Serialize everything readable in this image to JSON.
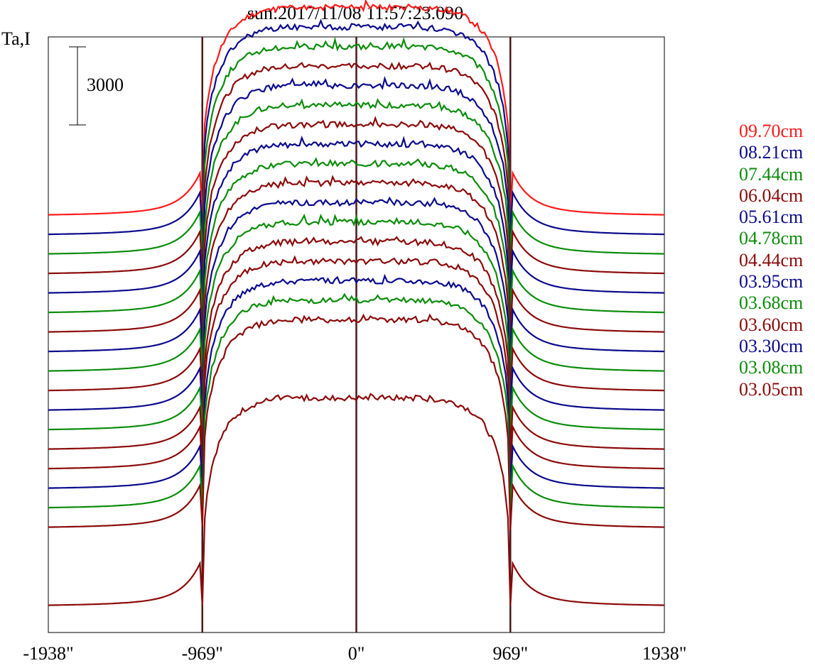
{
  "title": "sun:2017/11/08 11:57:23.090",
  "colors": {
    "frame": "#000000",
    "limb_lines": "#4a1a1a",
    "background": "#ffffff"
  },
  "chart_data": {
    "type": "line",
    "title": "sun:2017/11/08 11:57:23.090",
    "xlabel": "",
    "ylabel": "Ta,I",
    "x_ticks": [
      {
        "value": -1938,
        "label": "-1938\""
      },
      {
        "value": -969,
        "label": "-969\""
      },
      {
        "value": 0,
        "label": "0\""
      },
      {
        "value": 969,
        "label": "969\""
      },
      {
        "value": 1938,
        "label": "1938\""
      }
    ],
    "xlim": [
      -1938,
      1938
    ],
    "vertical_lines": [
      -969,
      0,
      969
    ],
    "scale_bar": {
      "label": "3000",
      "value": 3000
    },
    "grid": false,
    "legend_position": "right",
    "profile_shape": {
      "baseline": 0,
      "disk_plateau": 8000,
      "limb_radius": 969
    },
    "series": [
      {
        "name": "09.70cm",
        "color": "#ff1a1a",
        "offset": 15000
      },
      {
        "name": "08.21cm",
        "color": "#0a0a8c",
        "offset": 14250
      },
      {
        "name": "07.44cm",
        "color": "#0a8c0a",
        "offset": 13500
      },
      {
        "name": "06.04cm",
        "color": "#8b0a0a",
        "offset": 12750
      },
      {
        "name": "05.61cm",
        "color": "#0a0a8c",
        "offset": 12000
      },
      {
        "name": "04.78cm",
        "color": "#0a8c0a",
        "offset": 11250
      },
      {
        "name": "04.44cm",
        "color": "#8b0a0a",
        "offset": 10500
      },
      {
        "name": "03.95cm",
        "color": "#0a0a8c",
        "offset": 9750
      },
      {
        "name": "03.68cm",
        "color": "#0a8c0a",
        "offset": 9000
      },
      {
        "name": "03.60cm",
        "color": "#8b0a0a",
        "offset": 8250
      },
      {
        "name": "03.30cm",
        "color": "#0a0a8c",
        "offset": 7500
      },
      {
        "name": "03.08cm",
        "color": "#0a8c0a",
        "offset": 6750
      },
      {
        "name": "03.05cm",
        "color": "#8b0a0a",
        "offset": 6000
      }
    ],
    "extra_traces": [
      {
        "color": "#8b0a0a",
        "offset": 5250
      },
      {
        "color": "#0a0a8c",
        "offset": 4500
      },
      {
        "color": "#0a8c0a",
        "offset": 3750
      },
      {
        "color": "#8b0a0a",
        "offset": 3000
      }
    ]
  }
}
